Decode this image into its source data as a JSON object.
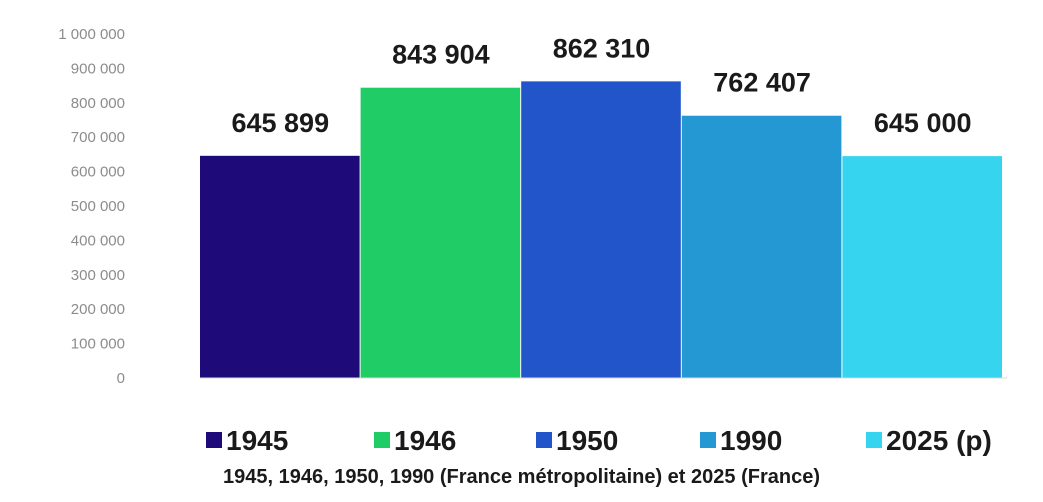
{
  "chart_data": {
    "type": "bar",
    "categories": [
      "1945",
      "1946",
      "1950",
      "1990",
      "2025 (p)"
    ],
    "values": [
      645899,
      843904,
      862310,
      762407,
      645000
    ],
    "value_labels": [
      "645 899",
      "843 904",
      "862 310",
      "762 407",
      "645 000"
    ],
    "colors": [
      "#1f0a7a",
      "#1fcc66",
      "#2155c9",
      "#2398d2",
      "#36d4ee"
    ],
    "ylim": [
      0,
      1000000
    ],
    "yticks": [
      0,
      100000,
      200000,
      300000,
      400000,
      500000,
      600000,
      700000,
      800000,
      900000,
      1000000
    ],
    "ytick_labels": [
      "0",
      "100 000",
      "200 000",
      "300 000",
      "400 000",
      "500 000",
      "600 000",
      "700 000",
      "800 000",
      "900 000",
      "1 000 000"
    ],
    "legend": [
      "1945",
      "1946",
      "1950",
      "1990",
      "2025 (p)"
    ],
    "legend_position": "bottom",
    "grid": false,
    "caption": "1945, 1946, 1950, 1990 (France métropolitaine) et 2025 (France)"
  }
}
